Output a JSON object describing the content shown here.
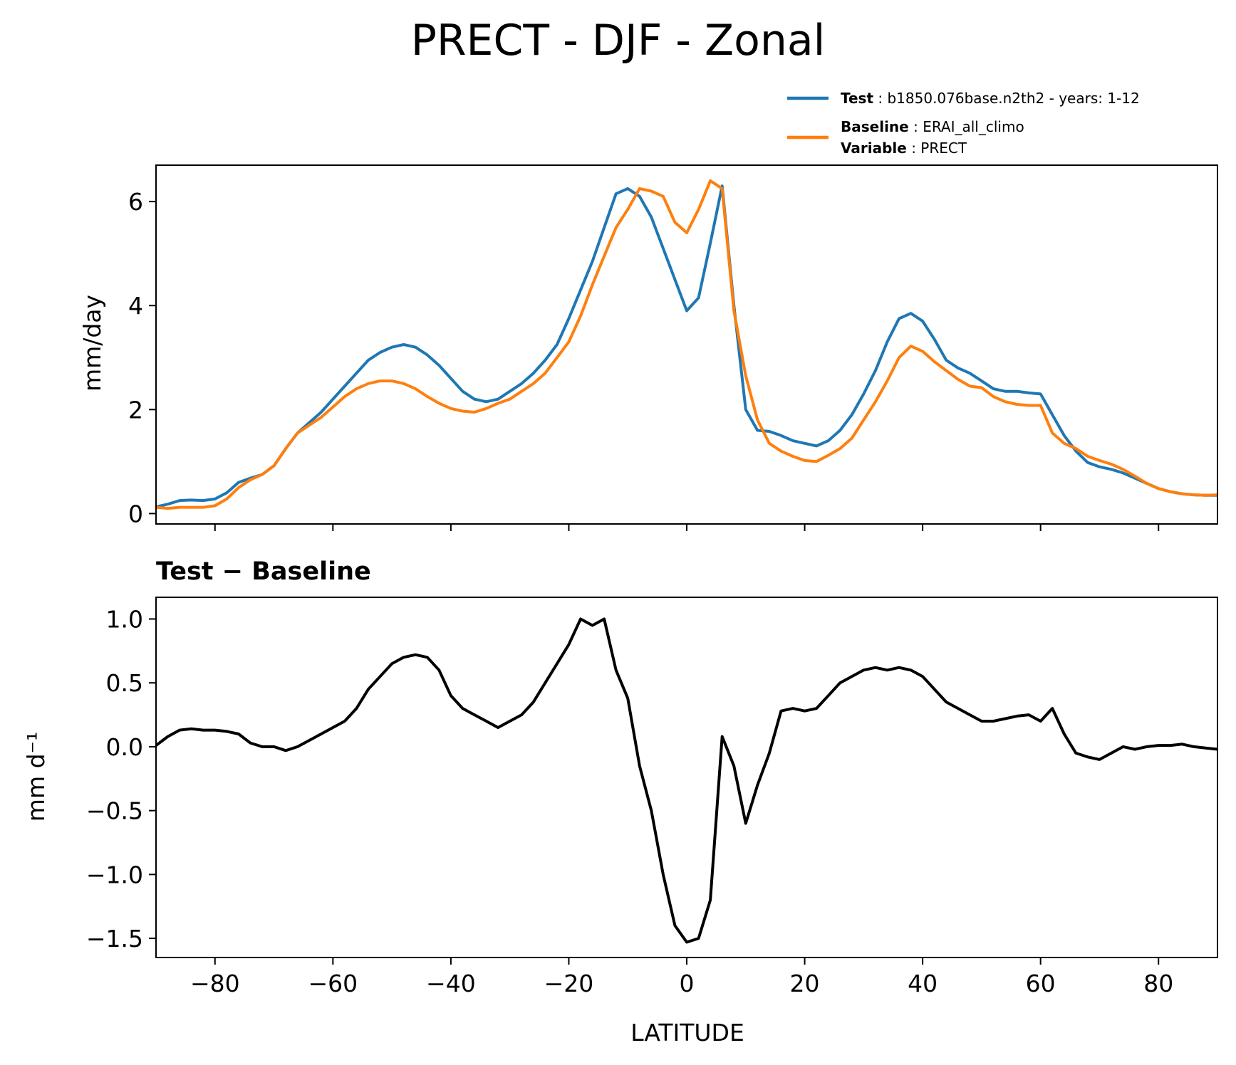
{
  "figure": {
    "title": "PRECT - DJF - Zonal"
  },
  "legend": {
    "test": {
      "key": "Test",
      "value": "b1850.076base.n2th2 - years: 1-12"
    },
    "baseline": {
      "key": "Baseline",
      "value": "ERAI_all_climo"
    },
    "variable": {
      "key": "Variable",
      "value": "PRECT"
    }
  },
  "chart_data": [
    {
      "type": "line",
      "title": "",
      "xlabel": "",
      "ylabel": "mm/day",
      "xlim": [
        -90,
        90
      ],
      "ylim": [
        -0.2,
        6.7
      ],
      "yticks": [
        0,
        2,
        4,
        6
      ],
      "xticks": [
        -80,
        -60,
        -40,
        -20,
        0,
        20,
        40,
        60,
        80
      ],
      "grid": false,
      "legend_position": "above, right",
      "series": [
        {
          "name": "Test",
          "color": "#1f77b4",
          "x": [
            -90,
            -88,
            -86,
            -84,
            -82,
            -80,
            -78,
            -76,
            -74,
            -72,
            -70,
            -68,
            -66,
            -64,
            -62,
            -60,
            -58,
            -56,
            -54,
            -52,
            -50,
            -48,
            -46,
            -44,
            -42,
            -40,
            -38,
            -36,
            -34,
            -32,
            -30,
            -28,
            -26,
            -24,
            -22,
            -20,
            -18,
            -16,
            -14,
            -12,
            -10,
            -8,
            -6,
            -4,
            -2,
            0,
            2,
            4,
            6,
            8,
            10,
            12,
            14,
            16,
            18,
            20,
            22,
            24,
            26,
            28,
            30,
            32,
            34,
            36,
            38,
            40,
            42,
            44,
            46,
            48,
            50,
            52,
            54,
            56,
            58,
            60,
            62,
            64,
            66,
            68,
            70,
            72,
            74,
            76,
            78,
            80,
            82,
            84,
            86,
            88,
            90
          ],
          "values": [
            0.13,
            0.18,
            0.25,
            0.26,
            0.25,
            0.28,
            0.4,
            0.6,
            0.68,
            0.75,
            0.92,
            1.25,
            1.55,
            1.75,
            1.95,
            2.2,
            2.45,
            2.7,
            2.95,
            3.1,
            3.2,
            3.25,
            3.2,
            3.05,
            2.85,
            2.6,
            2.35,
            2.2,
            2.15,
            2.2,
            2.35,
            2.5,
            2.7,
            2.95,
            3.25,
            3.75,
            4.3,
            4.85,
            5.5,
            6.15,
            6.25,
            6.1,
            5.7,
            5.1,
            4.5,
            3.9,
            4.15,
            5.2,
            6.3,
            4.0,
            2.0,
            1.6,
            1.58,
            1.5,
            1.4,
            1.35,
            1.3,
            1.4,
            1.6,
            1.9,
            2.3,
            2.75,
            3.3,
            3.75,
            3.85,
            3.7,
            3.35,
            2.95,
            2.8,
            2.7,
            2.55,
            2.4,
            2.35,
            2.35,
            2.32,
            2.3,
            1.9,
            1.5,
            1.2,
            0.98,
            0.9,
            0.85,
            0.78,
            0.68,
            0.58,
            0.48,
            0.42,
            0.38,
            0.36,
            0.35,
            0.35
          ]
        },
        {
          "name": "Baseline",
          "color": "#ff7f0e",
          "x": [
            -90,
            -88,
            -86,
            -84,
            -82,
            -80,
            -78,
            -76,
            -74,
            -72,
            -70,
            -68,
            -66,
            -64,
            -62,
            -60,
            -58,
            -56,
            -54,
            -52,
            -50,
            -48,
            -46,
            -44,
            -42,
            -40,
            -38,
            -36,
            -34,
            -32,
            -30,
            -28,
            -26,
            -24,
            -22,
            -20,
            -18,
            -16,
            -14,
            -12,
            -10,
            -8,
            -6,
            -4,
            -2,
            0,
            2,
            4,
            6,
            8,
            10,
            12,
            14,
            16,
            18,
            20,
            22,
            24,
            26,
            28,
            30,
            32,
            34,
            36,
            38,
            40,
            42,
            44,
            46,
            48,
            50,
            52,
            54,
            56,
            58,
            60,
            62,
            64,
            66,
            68,
            70,
            72,
            74,
            76,
            78,
            80,
            82,
            84,
            86,
            88,
            90
          ],
          "values": [
            0.12,
            0.1,
            0.12,
            0.12,
            0.12,
            0.15,
            0.28,
            0.5,
            0.65,
            0.75,
            0.92,
            1.25,
            1.55,
            1.7,
            1.85,
            2.05,
            2.25,
            2.4,
            2.5,
            2.55,
            2.55,
            2.5,
            2.4,
            2.25,
            2.12,
            2.02,
            1.97,
            1.95,
            2.02,
            2.12,
            2.2,
            2.35,
            2.5,
            2.7,
            3.0,
            3.3,
            3.8,
            4.4,
            4.95,
            5.5,
            5.85,
            6.25,
            6.2,
            6.1,
            5.6,
            5.4,
            5.85,
            6.4,
            6.25,
            3.9,
            2.65,
            1.8,
            1.35,
            1.2,
            1.1,
            1.02,
            1.0,
            1.12,
            1.25,
            1.45,
            1.8,
            2.15,
            2.55,
            3.0,
            3.22,
            3.12,
            2.92,
            2.75,
            2.58,
            2.45,
            2.42,
            2.25,
            2.15,
            2.1,
            2.08,
            2.08,
            1.55,
            1.35,
            1.25,
            1.1,
            1.02,
            0.95,
            0.85,
            0.72,
            0.58,
            0.48,
            0.42,
            0.38,
            0.36,
            0.35,
            0.36
          ]
        }
      ]
    },
    {
      "type": "line",
      "title": "Test − Baseline",
      "xlabel": "LATITUDE",
      "ylabel": "mm d⁻¹",
      "xlim": [
        -90,
        90
      ],
      "ylim": [
        -1.65,
        1.17
      ],
      "yticks": [
        1.0,
        0.5,
        0.0,
        -0.5,
        -1.0,
        -1.5
      ],
      "ytick_labels": [
        "1.0",
        "0.5",
        "0.0",
        "−0.5",
        "−1.0",
        "−1.5"
      ],
      "xticks": [
        -80,
        -60,
        -40,
        -20,
        0,
        20,
        40,
        60,
        80
      ],
      "xtick_labels": [
        "−80",
        "−60",
        "−40",
        "−20",
        "0",
        "20",
        "40",
        "60",
        "80"
      ],
      "grid": false,
      "series": [
        {
          "color": "#000000",
          "x": [
            -90,
            -88,
            -86,
            -84,
            -82,
            -80,
            -78,
            -76,
            -74,
            -72,
            -70,
            -68,
            -66,
            -64,
            -62,
            -60,
            -58,
            -56,
            -54,
            -52,
            -50,
            -48,
            -46,
            -44,
            -42,
            -40,
            -38,
            -36,
            -34,
            -32,
            -30,
            -28,
            -26,
            -24,
            -22,
            -20,
            -18,
            -16,
            -14,
            -12,
            -10,
            -8,
            -6,
            -4,
            -2,
            0,
            2,
            4,
            6,
            8,
            10,
            12,
            14,
            16,
            18,
            20,
            22,
            24,
            26,
            28,
            30,
            32,
            34,
            36,
            38,
            40,
            42,
            44,
            46,
            48,
            50,
            52,
            54,
            56,
            58,
            60,
            62,
            64,
            66,
            68,
            70,
            72,
            74,
            76,
            78,
            80,
            82,
            84,
            86,
            88,
            90
          ],
          "values": [
            0.01,
            0.08,
            0.13,
            0.14,
            0.13,
            0.13,
            0.12,
            0.1,
            0.03,
            0.0,
            0.0,
            -0.03,
            0.0,
            0.05,
            0.1,
            0.15,
            0.2,
            0.3,
            0.45,
            0.55,
            0.65,
            0.7,
            0.72,
            0.7,
            0.6,
            0.4,
            0.3,
            0.25,
            0.2,
            0.15,
            0.2,
            0.25,
            0.35,
            0.5,
            0.65,
            0.8,
            1.0,
            0.95,
            1.0,
            0.6,
            0.38,
            -0.15,
            -0.5,
            -1.0,
            -1.4,
            -1.53,
            -1.5,
            -1.2,
            0.08,
            -0.15,
            -0.6,
            -0.3,
            -0.05,
            0.28,
            0.3,
            0.28,
            0.3,
            0.4,
            0.5,
            0.55,
            0.6,
            0.62,
            0.6,
            0.62,
            0.6,
            0.55,
            0.45,
            0.35,
            0.3,
            0.25,
            0.2,
            0.2,
            0.22,
            0.24,
            0.25,
            0.2,
            0.3,
            0.1,
            -0.05,
            -0.08,
            -0.1,
            -0.05,
            0.0,
            -0.02,
            0.0,
            0.01,
            0.01,
            0.02,
            0.0,
            -0.01,
            -0.02
          ]
        }
      ]
    }
  ]
}
